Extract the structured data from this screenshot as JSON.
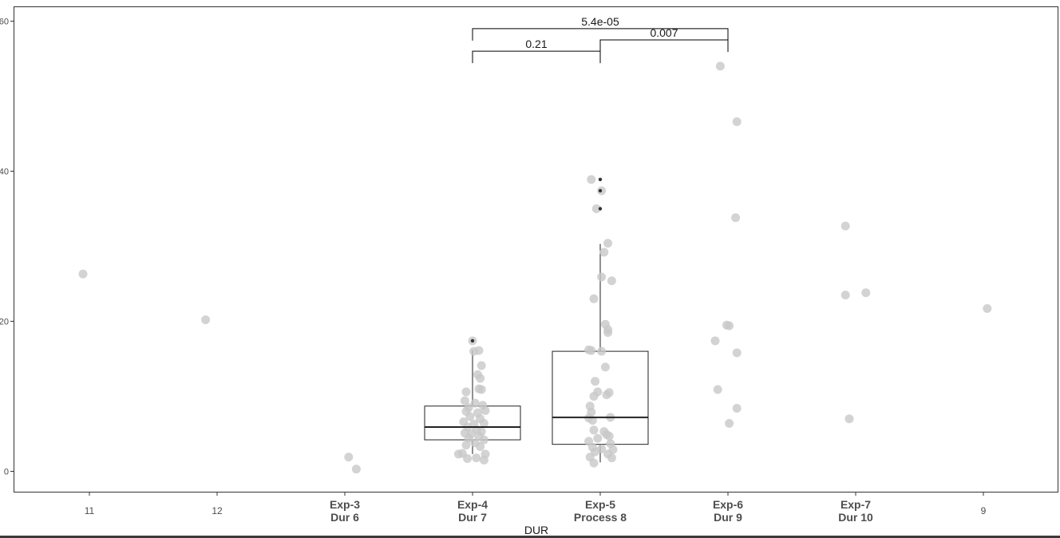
{
  "chart_data": {
    "type": "box",
    "xlabel": "DUR",
    "ylabel": "",
    "ylim": [
      -2,
      62
    ],
    "y_ticks": [
      0,
      20,
      40,
      60
    ],
    "y_tick_labels": [
      "0",
      "20",
      "40",
      "60"
    ],
    "grid": false,
    "colors": {
      "points": "#c8c8c8",
      "outliers": "#333333",
      "box_line": "#222222",
      "axis": "#333333"
    },
    "categories": [
      {
        "key": "11",
        "lines": [
          "11"
        ],
        "bold": false
      },
      {
        "key": "12",
        "lines": [
          "12"
        ],
        "bold": false
      },
      {
        "key": "Exp-3 Dur 6",
        "lines": [
          "Exp-3",
          "Dur 6"
        ],
        "bold": true
      },
      {
        "key": "Exp-4 Dur 7",
        "lines": [
          "Exp-4",
          "Dur 7"
        ],
        "bold": true
      },
      {
        "key": "Exp-5 Process 8",
        "lines": [
          "Exp-5",
          "Process 8"
        ],
        "bold": true
      },
      {
        "key": "Exp-6 Dur 9",
        "lines": [
          "Exp-6",
          "Dur 9"
        ],
        "bold": true
      },
      {
        "key": "Exp-7 Dur 10",
        "lines": [
          "Exp-7",
          "Dur 10"
        ],
        "bold": true
      },
      {
        "key": "9",
        "lines": [
          "9"
        ],
        "bold": false
      }
    ],
    "boxes": [
      {
        "category": 3,
        "q1": 4.2,
        "median": 5.9,
        "q3": 8.7,
        "whisker_low": 2.3,
        "whisker_high": 16.2,
        "outliers": [
          17.4
        ]
      },
      {
        "category": 4,
        "q1": 3.6,
        "median": 7.2,
        "q3": 16.0,
        "whisker_low": 1.2,
        "whisker_high": 30.3,
        "outliers": [
          38.9,
          37.4,
          35.0
        ]
      }
    ],
    "points": [
      {
        "category": 0,
        "jitter": -0.05,
        "y": 26.3
      },
      {
        "category": 1,
        "jitter": -0.09,
        "y": 20.2
      },
      {
        "category": 2,
        "jitter": 0.03,
        "y": 1.9
      },
      {
        "category": 2,
        "jitter": 0.09,
        "y": 0.3
      },
      {
        "category": 3,
        "jitter": 0.0,
        "y": 17.4
      },
      {
        "category": 3,
        "jitter": 0.05,
        "y": 16.1
      },
      {
        "category": 3,
        "jitter": 0.01,
        "y": 16.0
      },
      {
        "category": 3,
        "jitter": 0.07,
        "y": 14.1
      },
      {
        "category": 3,
        "jitter": 0.04,
        "y": 12.9
      },
      {
        "category": 3,
        "jitter": 0.06,
        "y": 12.4
      },
      {
        "category": 3,
        "jitter": 0.05,
        "y": 11.0
      },
      {
        "category": 3,
        "jitter": -0.05,
        "y": 10.6
      },
      {
        "category": 3,
        "jitter": 0.07,
        "y": 10.9
      },
      {
        "category": 3,
        "jitter": -0.06,
        "y": 9.4
      },
      {
        "category": 3,
        "jitter": 0.02,
        "y": 9.1
      },
      {
        "category": 3,
        "jitter": -0.03,
        "y": 8.5
      },
      {
        "category": 3,
        "jitter": 0.08,
        "y": 8.8
      },
      {
        "category": 3,
        "jitter": -0.05,
        "y": 8.0
      },
      {
        "category": 3,
        "jitter": 0.04,
        "y": 7.8
      },
      {
        "category": 3,
        "jitter": 0.1,
        "y": 8.1
      },
      {
        "category": 3,
        "jitter": -0.02,
        "y": 7.3
      },
      {
        "category": 3,
        "jitter": 0.06,
        "y": 7.0
      },
      {
        "category": 3,
        "jitter": -0.07,
        "y": 6.6
      },
      {
        "category": 3,
        "jitter": 0.01,
        "y": 6.3
      },
      {
        "category": 3,
        "jitter": 0.09,
        "y": 6.4
      },
      {
        "category": 3,
        "jitter": -0.04,
        "y": 5.9
      },
      {
        "category": 3,
        "jitter": 0.03,
        "y": 5.6
      },
      {
        "category": 3,
        "jitter": 0.07,
        "y": 5.3
      },
      {
        "category": 3,
        "jitter": -0.06,
        "y": 5.1
      },
      {
        "category": 3,
        "jitter": -0.01,
        "y": 5.0
      },
      {
        "category": 3,
        "jitter": 0.05,
        "y": 4.7
      },
      {
        "category": 3,
        "jitter": -0.03,
        "y": 4.4
      },
      {
        "category": 3,
        "jitter": 0.09,
        "y": 4.2
      },
      {
        "category": 3,
        "jitter": 0.02,
        "y": 3.8
      },
      {
        "category": 3,
        "jitter": -0.05,
        "y": 3.5
      },
      {
        "category": 3,
        "jitter": 0.06,
        "y": 3.3
      },
      {
        "category": 3,
        "jitter": 0.1,
        "y": 2.3
      },
      {
        "category": 3,
        "jitter": -0.08,
        "y": 2.4
      },
      {
        "category": 3,
        "jitter": -0.11,
        "y": 2.3
      },
      {
        "category": 3,
        "jitter": -0.04,
        "y": 1.7
      },
      {
        "category": 3,
        "jitter": 0.03,
        "y": 1.8
      },
      {
        "category": 3,
        "jitter": 0.09,
        "y": 1.5
      },
      {
        "category": 4,
        "jitter": -0.07,
        "y": 38.9
      },
      {
        "category": 4,
        "jitter": 0.01,
        "y": 37.4
      },
      {
        "category": 4,
        "jitter": -0.03,
        "y": 35.0
      },
      {
        "category": 4,
        "jitter": 0.06,
        "y": 30.4
      },
      {
        "category": 4,
        "jitter": 0.03,
        "y": 29.2
      },
      {
        "category": 4,
        "jitter": 0.09,
        "y": 25.4
      },
      {
        "category": 4,
        "jitter": 0.01,
        "y": 25.9
      },
      {
        "category": 4,
        "jitter": -0.05,
        "y": 23.0
      },
      {
        "category": 4,
        "jitter": 0.04,
        "y": 19.6
      },
      {
        "category": 4,
        "jitter": 0.06,
        "y": 18.9
      },
      {
        "category": 4,
        "jitter": 0.06,
        "y": 18.5
      },
      {
        "category": 4,
        "jitter": -0.09,
        "y": 16.2
      },
      {
        "category": 4,
        "jitter": -0.07,
        "y": 16.1
      },
      {
        "category": 4,
        "jitter": 0.01,
        "y": 16.0
      },
      {
        "category": 4,
        "jitter": 0.04,
        "y": 13.9
      },
      {
        "category": 4,
        "jitter": -0.04,
        "y": 12.0
      },
      {
        "category": 4,
        "jitter": 0.07,
        "y": 10.5
      },
      {
        "category": 4,
        "jitter": -0.02,
        "y": 10.6
      },
      {
        "category": 4,
        "jitter": 0.05,
        "y": 10.2
      },
      {
        "category": 4,
        "jitter": -0.05,
        "y": 10.0
      },
      {
        "category": 4,
        "jitter": -0.08,
        "y": 8.7
      },
      {
        "category": 4,
        "jitter": -0.07,
        "y": 7.9
      },
      {
        "category": 4,
        "jitter": 0.08,
        "y": 7.2
      },
      {
        "category": 4,
        "jitter": -0.09,
        "y": 7.1
      },
      {
        "category": 4,
        "jitter": -0.06,
        "y": 6.8
      },
      {
        "category": 4,
        "jitter": -0.05,
        "y": 5.5
      },
      {
        "category": 4,
        "jitter": 0.03,
        "y": 5.3
      },
      {
        "category": 4,
        "jitter": 0.07,
        "y": 4.7
      },
      {
        "category": 4,
        "jitter": 0.05,
        "y": 4.9
      },
      {
        "category": 4,
        "jitter": -0.09,
        "y": 4.0
      },
      {
        "category": 4,
        "jitter": -0.02,
        "y": 4.4
      },
      {
        "category": 4,
        "jitter": 0.08,
        "y": 3.7
      },
      {
        "category": 4,
        "jitter": -0.06,
        "y": 3.2
      },
      {
        "category": 4,
        "jitter": 0.01,
        "y": 3.0
      },
      {
        "category": 4,
        "jitter": 0.1,
        "y": 2.9
      },
      {
        "category": 4,
        "jitter": -0.04,
        "y": 2.6
      },
      {
        "category": 4,
        "jitter": 0.06,
        "y": 2.3
      },
      {
        "category": 4,
        "jitter": -0.08,
        "y": 1.9
      },
      {
        "category": 4,
        "jitter": 0.09,
        "y": 1.8
      },
      {
        "category": 4,
        "jitter": -0.05,
        "y": 1.1
      },
      {
        "category": 5,
        "jitter": -0.06,
        "y": 54.0
      },
      {
        "category": 5,
        "jitter": 0.07,
        "y": 46.6
      },
      {
        "category": 5,
        "jitter": 0.06,
        "y": 33.8
      },
      {
        "category": 5,
        "jitter": -0.01,
        "y": 19.5
      },
      {
        "category": 5,
        "jitter": 0.01,
        "y": 19.4
      },
      {
        "category": 5,
        "jitter": -0.1,
        "y": 17.4
      },
      {
        "category": 5,
        "jitter": 0.07,
        "y": 15.8
      },
      {
        "category": 5,
        "jitter": -0.08,
        "y": 10.9
      },
      {
        "category": 5,
        "jitter": 0.07,
        "y": 8.4
      },
      {
        "category": 5,
        "jitter": 0.01,
        "y": 6.4
      },
      {
        "category": 6,
        "jitter": -0.08,
        "y": 32.7
      },
      {
        "category": 6,
        "jitter": 0.08,
        "y": 23.8
      },
      {
        "category": 6,
        "jitter": -0.08,
        "y": 23.5
      },
      {
        "category": 6,
        "jitter": -0.05,
        "y": 7.0
      },
      {
        "category": 7,
        "jitter": 0.03,
        "y": 21.7
      }
    ],
    "comparisons": [
      {
        "from": 3,
        "to": 4,
        "y": 56.0,
        "label": "0.21"
      },
      {
        "from": 4,
        "to": 5,
        "y": 57.5,
        "label": "0.007"
      },
      {
        "from": 3,
        "to": 5,
        "y": 59.0,
        "label": "5.4e-05"
      }
    ]
  }
}
